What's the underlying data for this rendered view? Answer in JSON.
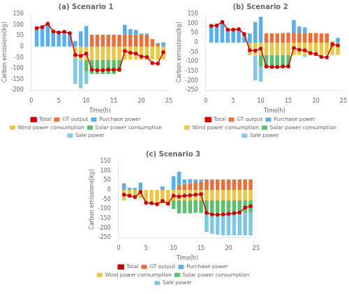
{
  "chart_data": [
    {
      "type": "bar",
      "title": "(a) Scenario 1",
      "xlabel": "Time(h)",
      "ylabel": "Carbon emissions(kg)",
      "x": [
        1,
        2,
        3,
        4,
        5,
        6,
        7,
        8,
        9,
        10,
        11,
        12,
        13,
        14,
        15,
        16,
        17,
        18,
        19,
        20,
        21,
        22,
        23,
        24
      ],
      "xlim": [
        0,
        25
      ],
      "xticks": [
        0,
        5,
        10,
        15,
        20,
        25
      ],
      "ylim": [
        -200,
        150
      ],
      "yticks": [
        -200,
        -150,
        -100,
        -50,
        0,
        50,
        100,
        150
      ],
      "stacked": true,
      "grid": false,
      "legend": "bottom",
      "series": [
        {
          "name": "GT output",
          "color": "#E8703A",
          "values": [
            0,
            0,
            0,
            0,
            0,
            0,
            0,
            0,
            0,
            0,
            55,
            55,
            55,
            55,
            55,
            55,
            55,
            55,
            55,
            55,
            55,
            35,
            12,
            0
          ]
        },
        {
          "name": "Purchase power",
          "color": "#5BAEE8",
          "values": [
            85,
            90,
            105,
            70,
            65,
            68,
            62,
            25,
            70,
            95,
            0,
            0,
            0,
            0,
            0,
            0,
            45,
            25,
            22,
            5,
            5,
            0,
            5,
            20
          ]
        },
        {
          "name": "Wind power consumption",
          "color": "#E8C84A",
          "values": [
            0,
            0,
            0,
            0,
            0,
            0,
            0,
            -55,
            -60,
            -60,
            -60,
            -60,
            -60,
            -60,
            -60,
            -60,
            -60,
            -60,
            -60,
            -60,
            -60,
            -60,
            -60,
            -60
          ]
        },
        {
          "name": "Solar power consumption",
          "color": "#5BBF6E",
          "values": [
            0,
            0,
            0,
            0,
            0,
            0,
            0,
            0,
            0,
            -55,
            -65,
            -65,
            -65,
            -65,
            -65,
            -55,
            0,
            0,
            0,
            0,
            0,
            0,
            0,
            0
          ]
        },
        {
          "name": "Sale power",
          "color": "#7EC8E3",
          "values": [
            0,
            0,
            0,
            0,
            0,
            0,
            0,
            -115,
            -130,
            -55,
            0,
            0,
            0,
            0,
            0,
            0,
            0,
            0,
            0,
            0,
            0,
            0,
            0,
            0
          ]
        },
        {
          "name": "Total",
          "color": "#CC0000",
          "type": "line",
          "marker": "circle",
          "line_style": "solid",
          "values": [
            85,
            90,
            105,
            70,
            65,
            68,
            62,
            -38,
            -42,
            -32,
            -105,
            -108,
            -108,
            -105,
            -105,
            -105,
            -20,
            -28,
            -32,
            -45,
            -48,
            -75,
            -77,
            -25
          ]
        }
      ]
    },
    {
      "type": "bar",
      "title": "(b) Scenario 2",
      "xlabel": "Time(h)",
      "ylabel": "Carbon emissions(kg)",
      "x": [
        1,
        2,
        3,
        4,
        5,
        6,
        7,
        8,
        9,
        10,
        11,
        12,
        13,
        14,
        15,
        16,
        17,
        18,
        19,
        20,
        21,
        22,
        23,
        24
      ],
      "xlim": [
        0,
        25
      ],
      "xticks": [
        0,
        5,
        10,
        15,
        20,
        25
      ],
      "ylim": [
        -250,
        150
      ],
      "yticks": [
        -250,
        -200,
        -150,
        -100,
        -50,
        0,
        50,
        100,
        150
      ],
      "stacked": true,
      "grid": false,
      "legend": "bottom",
      "series": [
        {
          "name": "GT output",
          "color": "#E8703A",
          "values": [
            0,
            0,
            0,
            0,
            0,
            0,
            0,
            0,
            0,
            0,
            48,
            48,
            48,
            50,
            50,
            50,
            50,
            50,
            50,
            50,
            48,
            48,
            5,
            0
          ]
        },
        {
          "name": "Purchase power",
          "color": "#5BAEE8",
          "values": [
            88,
            90,
            108,
            68,
            68,
            70,
            45,
            48,
            108,
            135,
            0,
            0,
            0,
            0,
            2,
            68,
            35,
            30,
            0,
            0,
            0,
            0,
            0,
            25
          ]
        },
        {
          "name": "Wind power consumption",
          "color": "#E8C84A",
          "values": [
            0,
            0,
            0,
            0,
            0,
            0,
            0,
            -65,
            -68,
            -65,
            -65,
            -65,
            -65,
            -65,
            -65,
            -65,
            -65,
            -65,
            -65,
            -65,
            -65,
            -65,
            -65,
            -65
          ]
        },
        {
          "name": "Solar power consumption",
          "color": "#5BBF6E",
          "values": [
            0,
            0,
            0,
            0,
            0,
            0,
            0,
            0,
            0,
            -60,
            -68,
            -68,
            -68,
            -65,
            -65,
            0,
            0,
            0,
            0,
            0,
            0,
            0,
            0,
            0
          ]
        },
        {
          "name": "Sale power",
          "color": "#7EC8E3",
          "values": [
            0,
            0,
            0,
            0,
            0,
            0,
            0,
            0,
            -130,
            -80,
            0,
            0,
            0,
            0,
            0,
            0,
            0,
            -10,
            0,
            0,
            0,
            0,
            0,
            0
          ]
        },
        {
          "name": "Total",
          "color": "#CC0000",
          "type": "line",
          "marker": "circle",
          "line_style": "solid",
          "values": [
            88,
            90,
            108,
            68,
            68,
            70,
            45,
            -40,
            -42,
            -32,
            -125,
            -128,
            -128,
            -125,
            -125,
            -28,
            -38,
            -40,
            -55,
            -60,
            -75,
            -78,
            -10,
            -15
          ]
        }
      ]
    },
    {
      "type": "bar",
      "title": "(c) Scenario 3",
      "xlabel": "Time(h)",
      "ylabel": "Carbon emissions(kg)",
      "x": [
        1,
        2,
        3,
        4,
        5,
        6,
        7,
        8,
        9,
        10,
        11,
        12,
        13,
        14,
        15,
        16,
        17,
        18,
        19,
        20,
        21,
        22,
        23,
        24
      ],
      "xlim": [
        0,
        25
      ],
      "xticks": [
        0,
        5,
        10,
        15,
        20,
        25
      ],
      "ylim": [
        -250,
        150
      ],
      "yticks": [
        -250,
        -200,
        -150,
        -100,
        -50,
        0,
        50,
        100,
        150
      ],
      "stacked": true,
      "grid": false,
      "legend": "bottom",
      "series": [
        {
          "name": "GT output",
          "color": "#E8703A",
          "values": [
            0,
            0,
            0,
            0,
            0,
            0,
            0,
            0,
            0,
            0,
            25,
            30,
            35,
            40,
            42,
            55,
            55,
            55,
            55,
            55,
            55,
            55,
            55,
            55
          ]
        },
        {
          "name": "Purchase power",
          "color": "#5BAEE8",
          "values": [
            35,
            12,
            10,
            38,
            0,
            0,
            0,
            18,
            0,
            72,
            70,
            25,
            22,
            15,
            12,
            0,
            0,
            0,
            0,
            0,
            0,
            0,
            0,
            0
          ]
        },
        {
          "name": "Wind power consumption",
          "color": "#E8C84A",
          "values": [
            -55,
            -40,
            -45,
            -45,
            -70,
            -68,
            -72,
            -72,
            -72,
            -55,
            -55,
            -55,
            -55,
            -55,
            -55,
            -55,
            -55,
            -55,
            -55,
            -55,
            -55,
            -55,
            -55,
            -55
          ]
        },
        {
          "name": "Solar power consumption",
          "color": "#5BBF6E",
          "values": [
            0,
            0,
            0,
            0,
            0,
            0,
            0,
            0,
            0,
            -45,
            -68,
            -68,
            -68,
            -65,
            -65,
            -65,
            -65,
            -65,
            -65,
            -65,
            -65,
            -65,
            -65,
            -65
          ]
        },
        {
          "name": "Sale power",
          "color": "#7EC8E3",
          "values": [
            0,
            0,
            0,
            0,
            0,
            0,
            0,
            0,
            0,
            0,
            0,
            0,
            0,
            0,
            0,
            -100,
            -110,
            -115,
            -118,
            -118,
            -118,
            -118,
            -118,
            -118
          ]
        },
        {
          "name": "Total",
          "color": "#CC0000",
          "type": "line",
          "marker": "circle",
          "line_style": "solid",
          "values": [
            -25,
            -30,
            -38,
            -10,
            -68,
            -70,
            -75,
            -58,
            -72,
            -30,
            -35,
            -30,
            -28,
            -25,
            -22,
            -120,
            -128,
            -130,
            -128,
            -125,
            -122,
            -118,
            -92,
            -85
          ]
        }
      ]
    }
  ]
}
